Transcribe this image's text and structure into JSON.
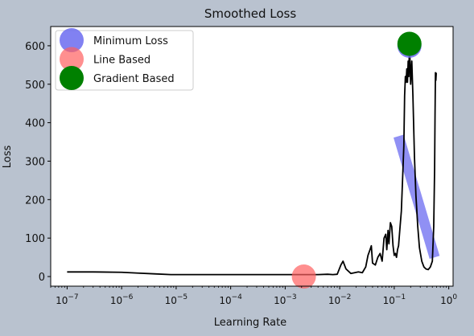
{
  "chart_data": {
    "type": "line",
    "title": "Smoothed Loss",
    "xlabel": "Learning Rate",
    "ylabel": "Loss",
    "xscale": "log",
    "xlim": [
      5e-08,
      1.2
    ],
    "ylim": [
      -25,
      650
    ],
    "x_tick_values": [
      1e-07,
      1e-06,
      1e-05,
      0.0001,
      0.001,
      0.01,
      0.1,
      1
    ],
    "x_tick_labels": [
      {
        "base": "10",
        "exp": "−7"
      },
      {
        "base": "10",
        "exp": "−6"
      },
      {
        "base": "10",
        "exp": "−5"
      },
      {
        "base": "10",
        "exp": "−4"
      },
      {
        "base": "10",
        "exp": "−3"
      },
      {
        "base": "10",
        "exp": "−2"
      },
      {
        "base": "10",
        "exp": "−1"
      },
      {
        "base": "10",
        "exp": "0"
      }
    ],
    "y_ticks": [
      0,
      100,
      200,
      300,
      400,
      500,
      600
    ],
    "grid": false,
    "legend_position": "top-left",
    "series": [
      {
        "name": "loss",
        "color": "#000000",
        "points": [
          [
            1e-07,
            12
          ],
          [
            3e-07,
            12
          ],
          [
            1e-06,
            11
          ],
          [
            2e-06,
            9
          ],
          [
            4e-06,
            7
          ],
          [
            8e-06,
            5
          ],
          [
            2e-05,
            5
          ],
          [
            0.0001,
            5
          ],
          [
            0.0005,
            5
          ],
          [
            0.001,
            5
          ],
          [
            0.002,
            5
          ],
          [
            0.004,
            5
          ],
          [
            0.006,
            6
          ],
          [
            0.0075,
            5
          ],
          [
            0.009,
            6
          ],
          [
            0.0105,
            30
          ],
          [
            0.0115,
            40
          ],
          [
            0.013,
            20
          ],
          [
            0.016,
            8
          ],
          [
            0.022,
            12
          ],
          [
            0.026,
            10
          ],
          [
            0.03,
            25
          ],
          [
            0.033,
            55
          ],
          [
            0.036,
            70
          ],
          [
            0.038,
            80
          ],
          [
            0.04,
            35
          ],
          [
            0.045,
            30
          ],
          [
            0.05,
            50
          ],
          [
            0.055,
            60
          ],
          [
            0.06,
            40
          ],
          [
            0.065,
            100
          ],
          [
            0.07,
            110
          ],
          [
            0.073,
            70
          ],
          [
            0.077,
            120
          ],
          [
            0.08,
            85
          ],
          [
            0.085,
            140
          ],
          [
            0.09,
            130
          ],
          [
            0.095,
            80
          ],
          [
            0.1,
            55
          ],
          [
            0.105,
            60
          ],
          [
            0.11,
            50
          ],
          [
            0.115,
            70
          ],
          [
            0.12,
            80
          ],
          [
            0.128,
            130
          ],
          [
            0.135,
            170
          ],
          [
            0.142,
            250
          ],
          [
            0.15,
            340
          ],
          [
            0.155,
            470
          ],
          [
            0.16,
            520
          ],
          [
            0.165,
            505
          ],
          [
            0.17,
            540
          ],
          [
            0.175,
            505
          ],
          [
            0.18,
            560
          ],
          [
            0.185,
            520
          ],
          [
            0.19,
            605
          ],
          [
            0.195,
            560
          ],
          [
            0.2,
            500
          ],
          [
            0.21,
            560
          ],
          [
            0.22,
            470
          ],
          [
            0.235,
            310
          ],
          [
            0.25,
            210
          ],
          [
            0.27,
            130
          ],
          [
            0.29,
            75
          ],
          [
            0.32,
            40
          ],
          [
            0.35,
            25
          ],
          [
            0.38,
            20
          ],
          [
            0.42,
            18
          ],
          [
            0.46,
            25
          ],
          [
            0.5,
            40
          ],
          [
            0.53,
            130
          ],
          [
            0.55,
            280
          ],
          [
            0.56,
            420
          ],
          [
            0.57,
            530
          ],
          [
            0.58,
            510
          ],
          [
            0.59,
            530
          ]
        ]
      }
    ],
    "markers": [
      {
        "name": "Minimum Loss",
        "x": 0.19,
        "y": 600,
        "color": "#6b6bf0",
        "opacity": 0.85
      },
      {
        "name": "Line Based",
        "x": 0.0022,
        "y": 0,
        "color": "#ff6060",
        "opacity": 0.7
      },
      {
        "name": "Gradient Based",
        "x": 0.19,
        "y": 605,
        "color": "#008000",
        "opacity": 1.0
      }
    ],
    "gradient_band": {
      "x": [
        0.12,
        0.55
      ],
      "y": [
        365,
        50
      ],
      "color": "#6b6bf0"
    }
  }
}
